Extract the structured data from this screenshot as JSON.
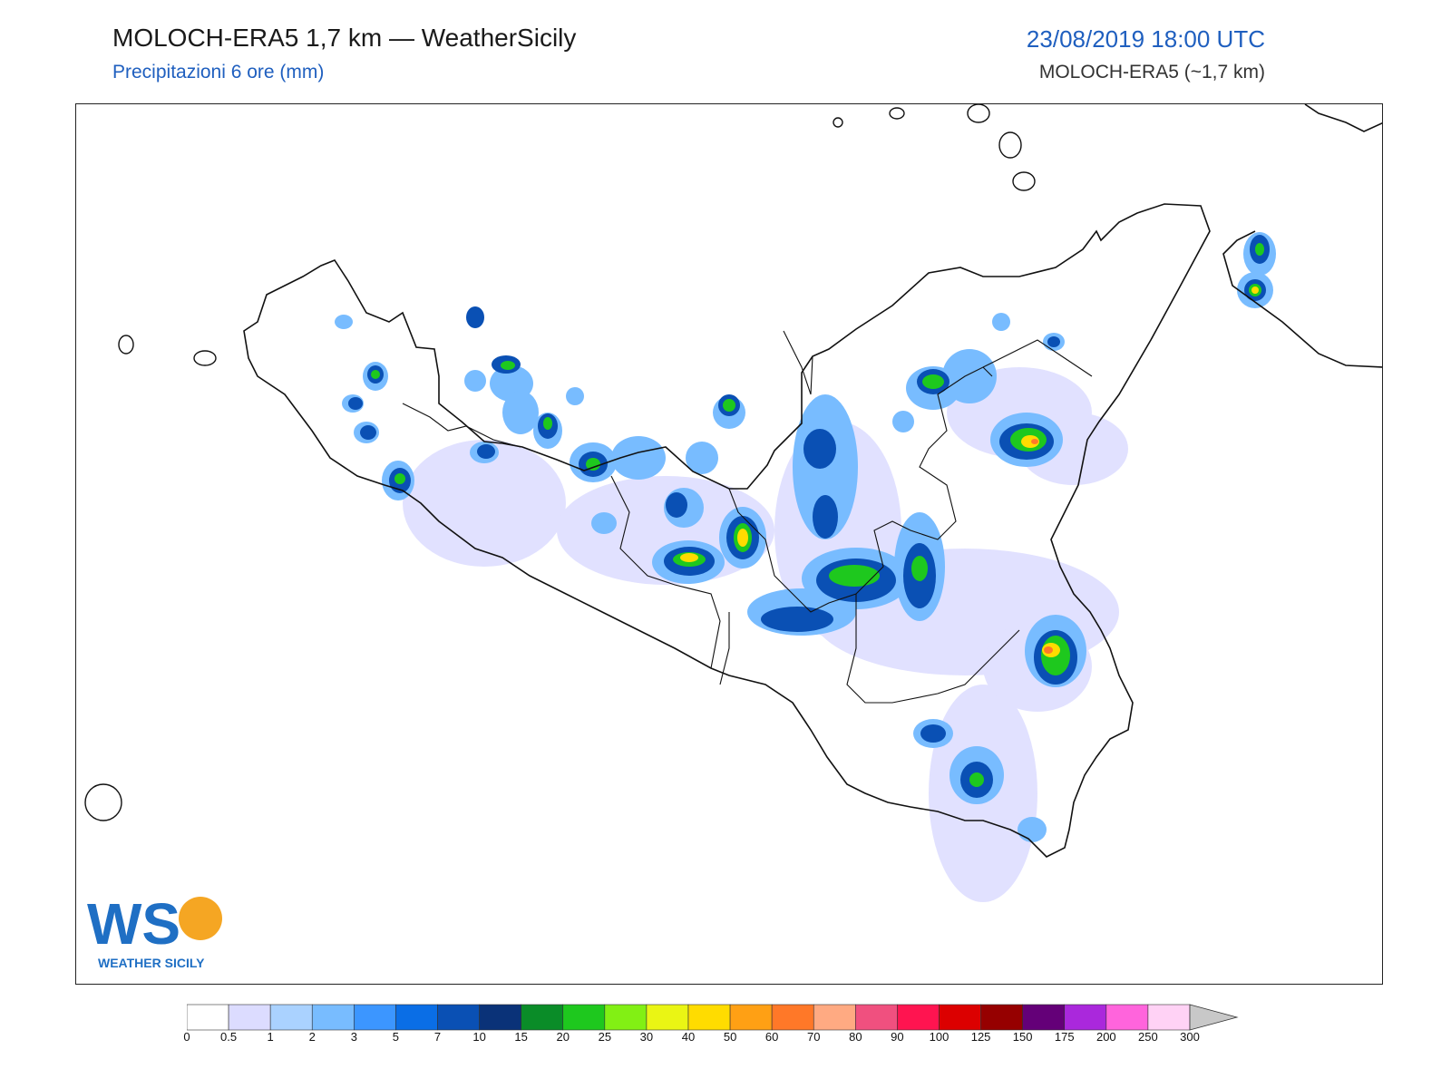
{
  "header": {
    "title": "MOLOCH-ERA5 1,7 km — WeatherSicily",
    "subtitle": "Precipitazioni 6 ore (mm)",
    "datetime": "23/08/2019 18:00 UTC",
    "model": "MOLOCH-ERA5 (~1,7 km)"
  },
  "logo": {
    "mark": "WS",
    "name": "WEATHER SICILY"
  },
  "colorbar": {
    "levels": [
      "0",
      "0.5",
      "1",
      "2",
      "3",
      "5",
      "7",
      "10",
      "15",
      "20",
      "25",
      "30",
      "40",
      "50",
      "60",
      "70",
      "80",
      "90",
      "100",
      "125",
      "150",
      "175",
      "200",
      "250",
      "300"
    ],
    "colors": [
      "#ffffff",
      "#dcdcff",
      "#aad2ff",
      "#78bcff",
      "#3c96ff",
      "#0a6ee6",
      "#0a50b4",
      "#0a3278",
      "#0a8c28",
      "#1ec81e",
      "#82f014",
      "#eaf514",
      "#ffdc00",
      "#ffa014",
      "#ff7828",
      "#ffaa82",
      "#f0507f",
      "#ff1450",
      "#dc0000",
      "#960000",
      "#640078",
      "#aa28dc",
      "#ff64dc",
      "#ffd2f5"
    ],
    "extend_color": "#c8c8c8"
  }
}
